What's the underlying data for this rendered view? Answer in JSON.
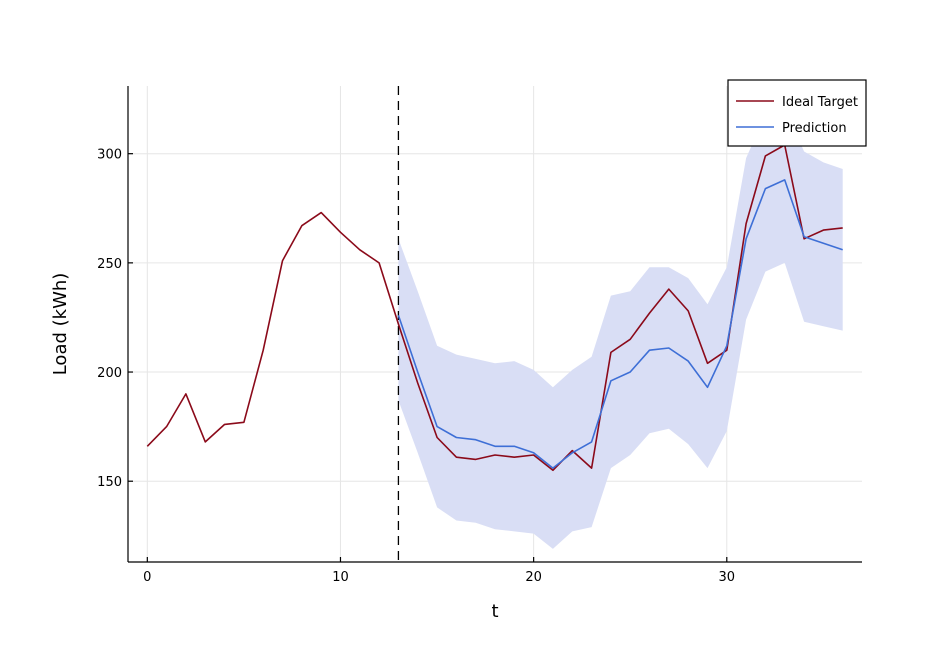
{
  "chart_data": {
    "type": "line",
    "title": "",
    "xlabel": "t",
    "ylabel": "Load (kWh)",
    "xlim": [
      -1,
      37
    ],
    "ylim": [
      113,
      331
    ],
    "xticks": [
      0,
      10,
      20,
      30
    ],
    "yticks": [
      150,
      200,
      250,
      300
    ],
    "grid": true,
    "legend_position": "top-right",
    "forecast_start": 13,
    "colors": {
      "ideal_target": "#8b0a1a",
      "prediction": "#3e6fd6",
      "band": "#d9def5"
    },
    "series": [
      {
        "name": "Ideal Target",
        "x": [
          0,
          1,
          2,
          3,
          4,
          5,
          6,
          7,
          8,
          9,
          10,
          11,
          12,
          13,
          14,
          15,
          16,
          17,
          18,
          19,
          20,
          21,
          22,
          23,
          24,
          25,
          26,
          27,
          28,
          29,
          30,
          31,
          32,
          33,
          34,
          35,
          36
        ],
        "values": [
          166,
          175,
          190,
          168,
          176,
          177,
          210,
          251,
          267,
          273,
          264,
          256,
          250,
          222,
          195,
          170,
          161,
          160,
          162,
          161,
          162,
          155,
          164,
          156,
          209,
          215,
          227,
          238,
          228,
          204,
          210,
          268,
          299,
          304,
          261,
          265,
          266
        ]
      },
      {
        "name": "Prediction",
        "x": [
          13,
          14,
          15,
          16,
          17,
          18,
          19,
          20,
          21,
          22,
          23,
          24,
          25,
          26,
          27,
          28,
          29,
          30,
          31,
          32,
          33,
          34,
          35,
          36
        ],
        "values": [
          226,
          200,
          175,
          170,
          169,
          166,
          166,
          163,
          156,
          163,
          168,
          196,
          200,
          210,
          211,
          205,
          193,
          212,
          261,
          284,
          288,
          262,
          259,
          256
        ]
      }
    ],
    "band": {
      "x": [
        13,
        14,
        15,
        16,
        17,
        18,
        19,
        20,
        21,
        22,
        23,
        24,
        25,
        26,
        27,
        28,
        29,
        30,
        31,
        32,
        33,
        34,
        35,
        36
      ],
      "upper": [
        261,
        237,
        212,
        208,
        206,
        204,
        205,
        201,
        193,
        201,
        207,
        235,
        237,
        248,
        248,
        243,
        231,
        248,
        298,
        318,
        321,
        301,
        296,
        293
      ],
      "lower": [
        187,
        163,
        138,
        132,
        131,
        128,
        127,
        126,
        119,
        127,
        129,
        156,
        162,
        172,
        174,
        167,
        156,
        173,
        224,
        246,
        250,
        223,
        221,
        219
      ]
    },
    "legend": [
      {
        "label": "Ideal Target",
        "color": "#8b0a1a"
      },
      {
        "label": "Prediction",
        "color": "#3e6fd6"
      }
    ]
  }
}
